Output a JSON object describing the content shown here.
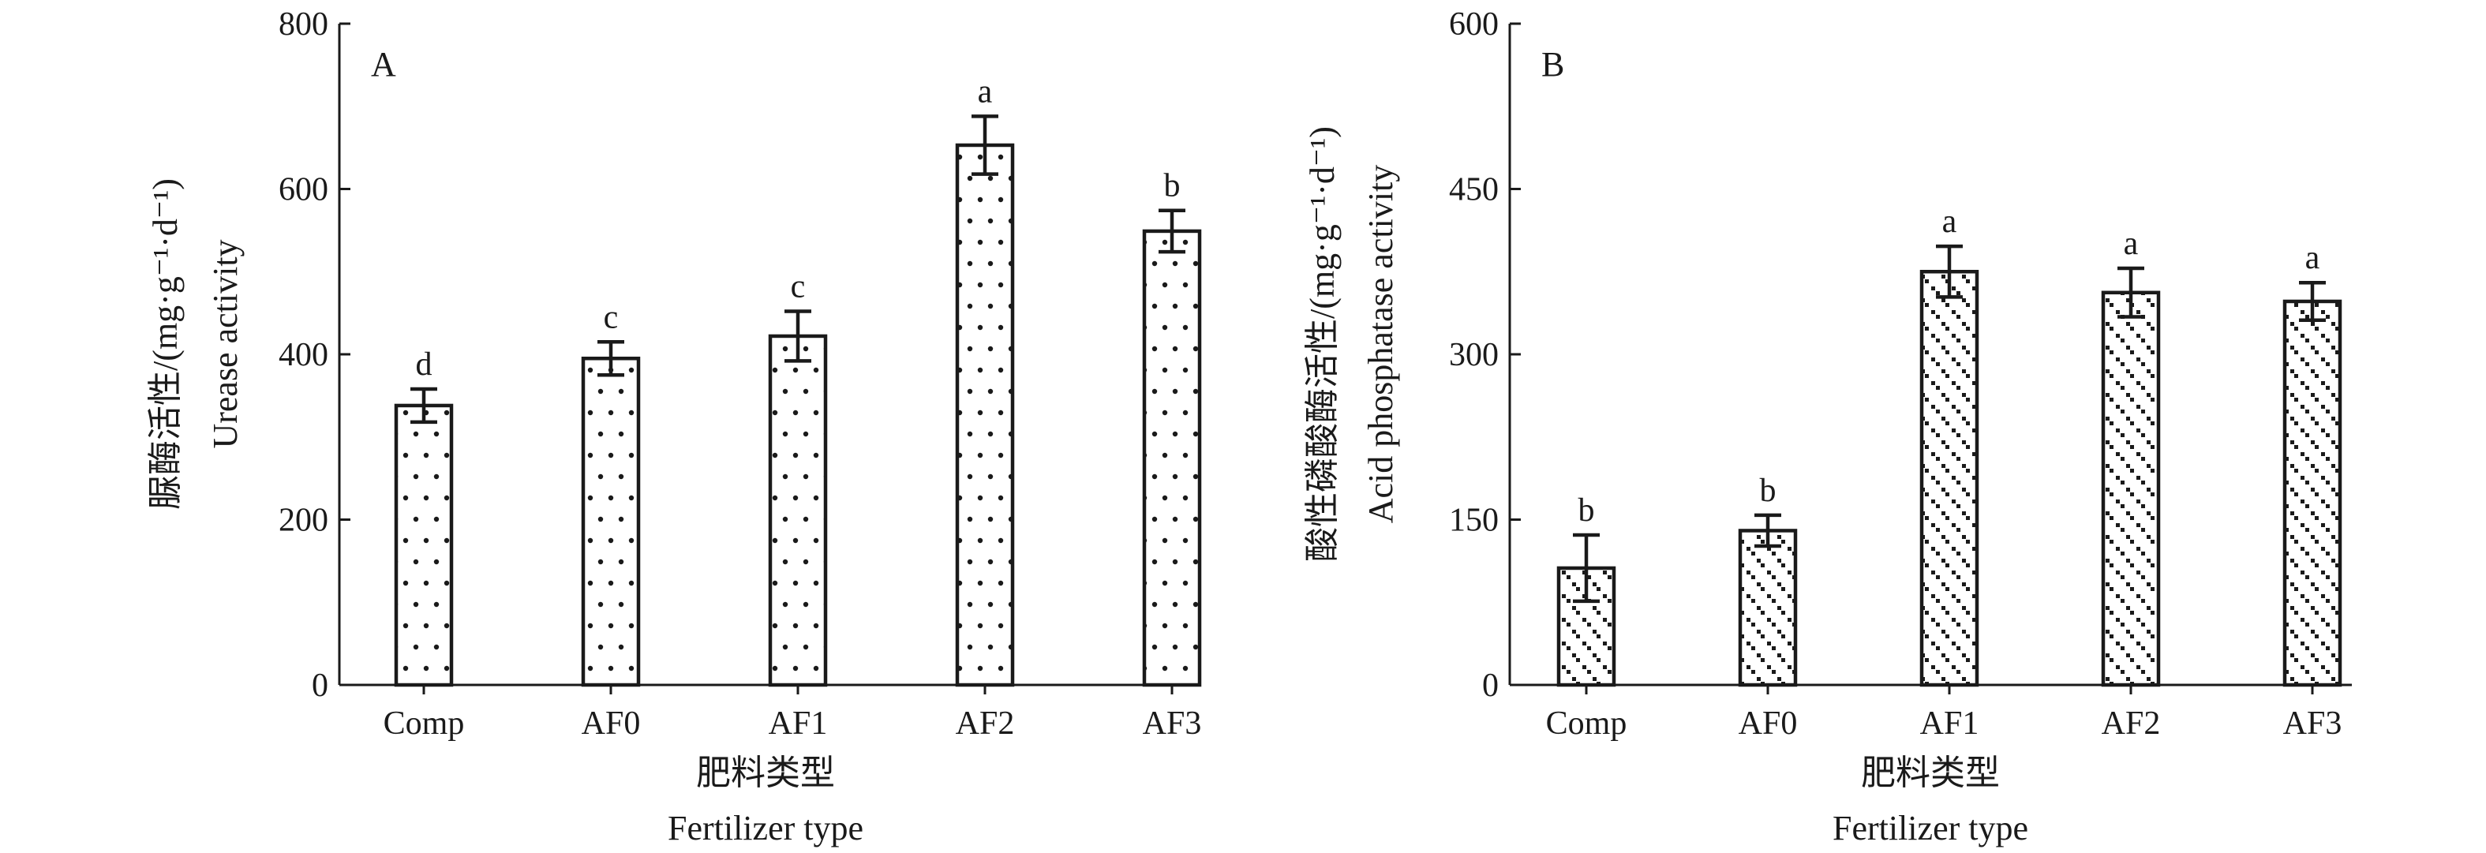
{
  "chart_data": [
    {
      "type": "bar",
      "panel_label": "A",
      "categories": [
        "Comp",
        "AF0",
        "AF1",
        "AF2",
        "AF3"
      ],
      "values": [
        338,
        395,
        422,
        653,
        549
      ],
      "errors": [
        20,
        20,
        30,
        35,
        25
      ],
      "significance": [
        "d",
        "c",
        "c",
        "a",
        "b"
      ],
      "xlabel_cn": "肥料类型",
      "xlabel_en": "Fertilizer type",
      "ylabel_cn": "脲酶活性/(mg·g⁻¹·d⁻¹)",
      "ylabel_en": "Urease activity",
      "ylim": [
        0,
        800
      ],
      "yticks": [
        0,
        200,
        400,
        600,
        800
      ],
      "fill_pattern": "sparse-dots",
      "grid": false,
      "legend": "none"
    },
    {
      "type": "bar",
      "panel_label": "B",
      "categories": [
        "Comp",
        "AF0",
        "AF1",
        "AF2",
        "AF3"
      ],
      "values": [
        106,
        140,
        375,
        356,
        348
      ],
      "errors": [
        30,
        14,
        23,
        22,
        17
      ],
      "significance": [
        "b",
        "b",
        "a",
        "a",
        "a"
      ],
      "xlabel_cn": "肥料类型",
      "xlabel_en": "Fertilizer type",
      "ylabel_cn": "酸性磷酸酶活性/(mg·g⁻¹·d⁻¹)",
      "ylabel_en": "Acid phosphatase activity",
      "ylim": [
        0,
        600
      ],
      "yticks": [
        0,
        150,
        300,
        450,
        600
      ],
      "fill_pattern": "dense-dots",
      "grid": false,
      "legend": "none"
    }
  ]
}
